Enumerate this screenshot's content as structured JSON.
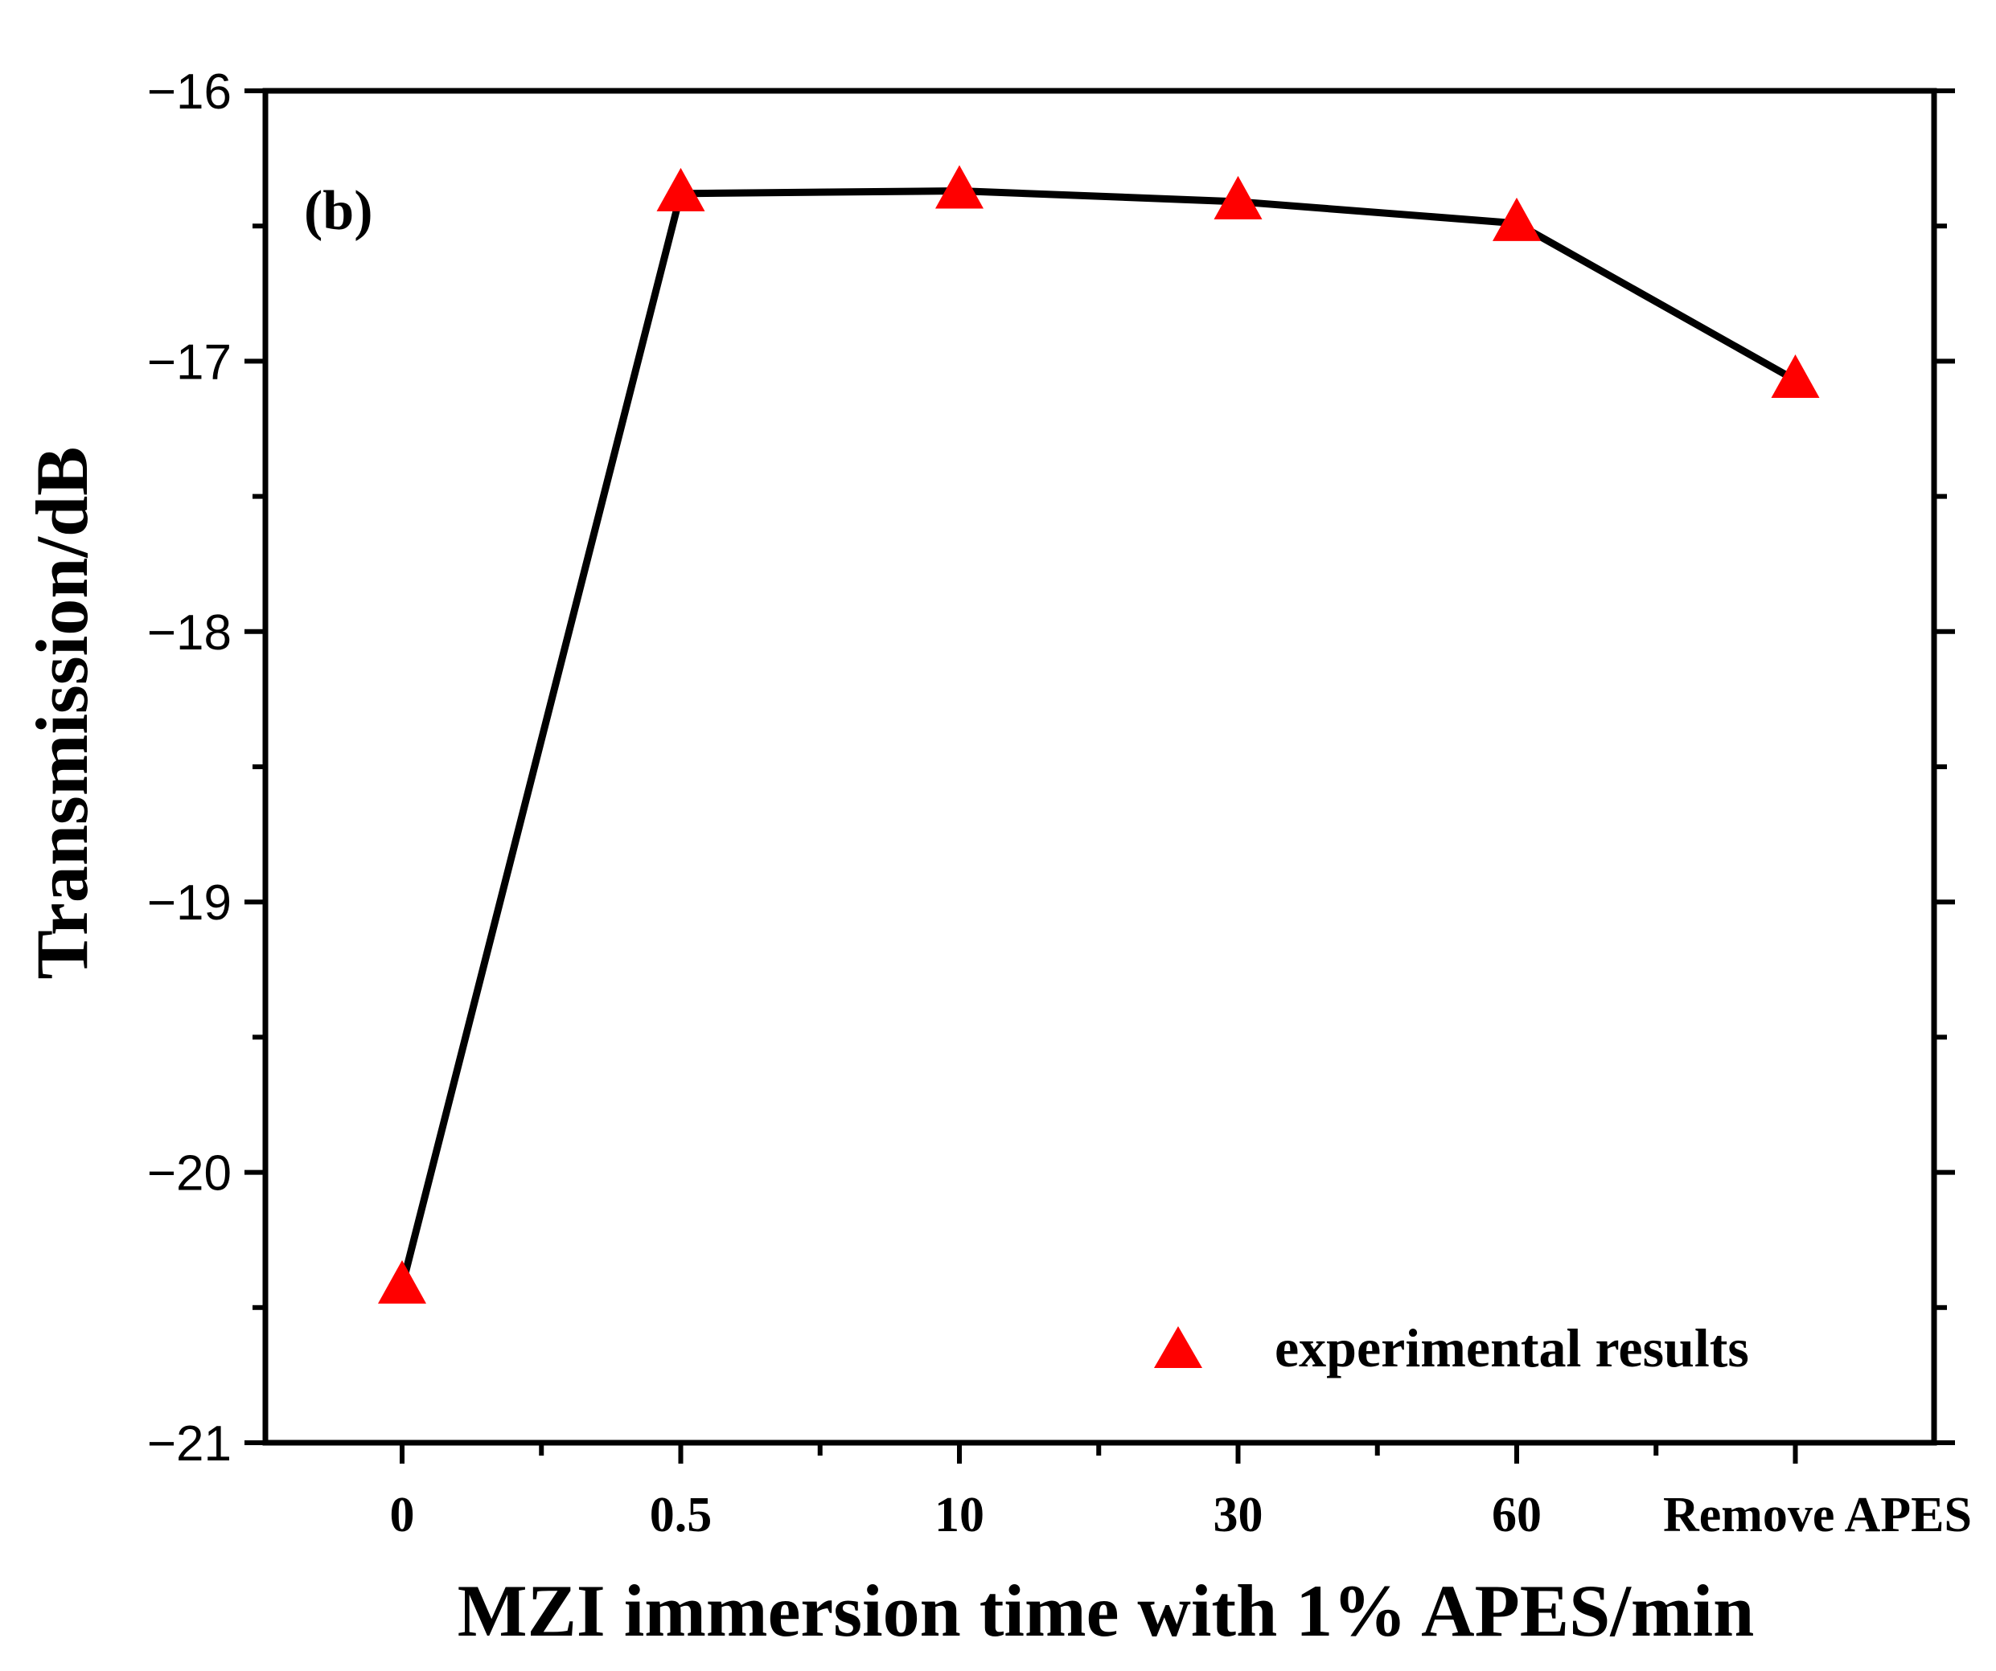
{
  "chart_data": {
    "type": "line",
    "panel_label": "(b)",
    "xlabel": "MZI immersion time with 1% APES/min",
    "ylabel": "Transmission/dB",
    "categories": [
      "0",
      "0.5",
      "10",
      "30",
      "60",
      "Remove APES"
    ],
    "ylim": [
      -21,
      -16
    ],
    "yticks": [
      -16,
      -17,
      -18,
      -19,
      -20,
      -21
    ],
    "ytick_labels": [
      "−16",
      "−17",
      "−18",
      "−19",
      "−20",
      "−21"
    ],
    "series": [
      {
        "name": "experimental results",
        "values": [
          -20.42,
          -16.38,
          -16.37,
          -16.41,
          -16.49,
          -17.07
        ],
        "line_color": "#000000",
        "marker": "triangle",
        "marker_color": "#ff0000"
      }
    ],
    "legend": {
      "label": "experimental results",
      "position": "bottom-right"
    },
    "grid": false
  }
}
